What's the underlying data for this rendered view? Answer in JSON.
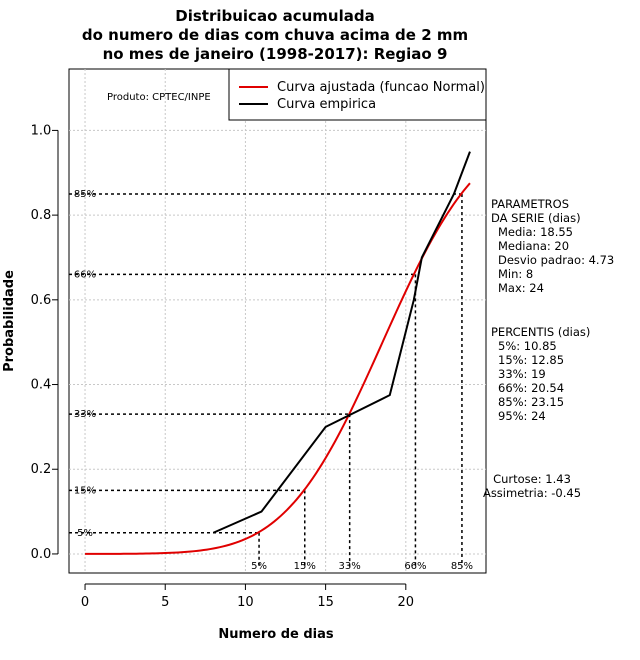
{
  "chart_data": {
    "type": "line",
    "title": [
      "Distribuicao acumulada",
      "do numero de dias com chuva acima de 2 mm",
      "no mes de janeiro (1998-2017): Regiao 9"
    ],
    "xlabel": "Numero de dias",
    "ylabel": "Probabilidade",
    "xlim": [
      -1,
      25
    ],
    "ylim": [
      -0.045,
      1.145
    ],
    "x_ticks": [
      0,
      5,
      10,
      15,
      20
    ],
    "x_tick_labels": [
      "0",
      "5",
      "10",
      "15",
      "20"
    ],
    "y_ticks": [
      0.0,
      0.2,
      0.4,
      0.6,
      0.8,
      1.0
    ],
    "y_tick_labels": [
      "0.0",
      "0.2",
      "0.4",
      "0.6",
      "0.8",
      "1.0"
    ],
    "grid": true,
    "credit": "Produto: CPTEC/INPE",
    "legend": {
      "position": "top-right",
      "entries": [
        {
          "label": "Curva ajustada (funcao Normal)",
          "color": "#e00000"
        },
        {
          "label": "Curva empirica",
          "color": "#000000"
        }
      ]
    },
    "series": [
      {
        "name": "Curva ajustada (funcao Normal)",
        "color": "#e00000",
        "distribution": {
          "mean": 18.55,
          "sd": 4.73,
          "x_range": [
            0,
            24
          ]
        }
      },
      {
        "name": "Curva empirica",
        "color": "#000000",
        "x": [
          8,
          11,
          15,
          19,
          20.5,
          21,
          23,
          24
        ],
        "y": [
          0.05,
          0.1,
          0.3,
          0.375,
          0.6,
          0.7,
          0.85,
          0.95
        ]
      }
    ],
    "percentile_markers": [
      {
        "label": "5%",
        "prob": 0.05,
        "x": 10.85
      },
      {
        "label": "15%",
        "prob": 0.15,
        "x": 13.7
      },
      {
        "label": "33%",
        "prob": 0.33,
        "x": 16.5
      },
      {
        "label": "66%",
        "prob": 0.66,
        "x": 20.6
      },
      {
        "label": "85%",
        "prob": 0.85,
        "x": 23.5
      }
    ],
    "parameters": {
      "heading": [
        "PARAMETROS",
        "DA SERIE (dias)"
      ],
      "items": [
        "Media: 18.55",
        "Mediana: 20",
        "Desvio padrao: 4.73",
        "Min: 8",
        "Max: 24"
      ]
    },
    "percentis": {
      "heading": "PERCENTIS (dias)",
      "items": [
        "5%: 10.85",
        "15%: 12.85",
        "33%: 19",
        "66%: 20.54",
        "85%: 23.15",
        "95%: 24"
      ]
    },
    "shape_stats": [
      "Curtose: 1.43",
      "Assimetria: -0.45"
    ]
  }
}
